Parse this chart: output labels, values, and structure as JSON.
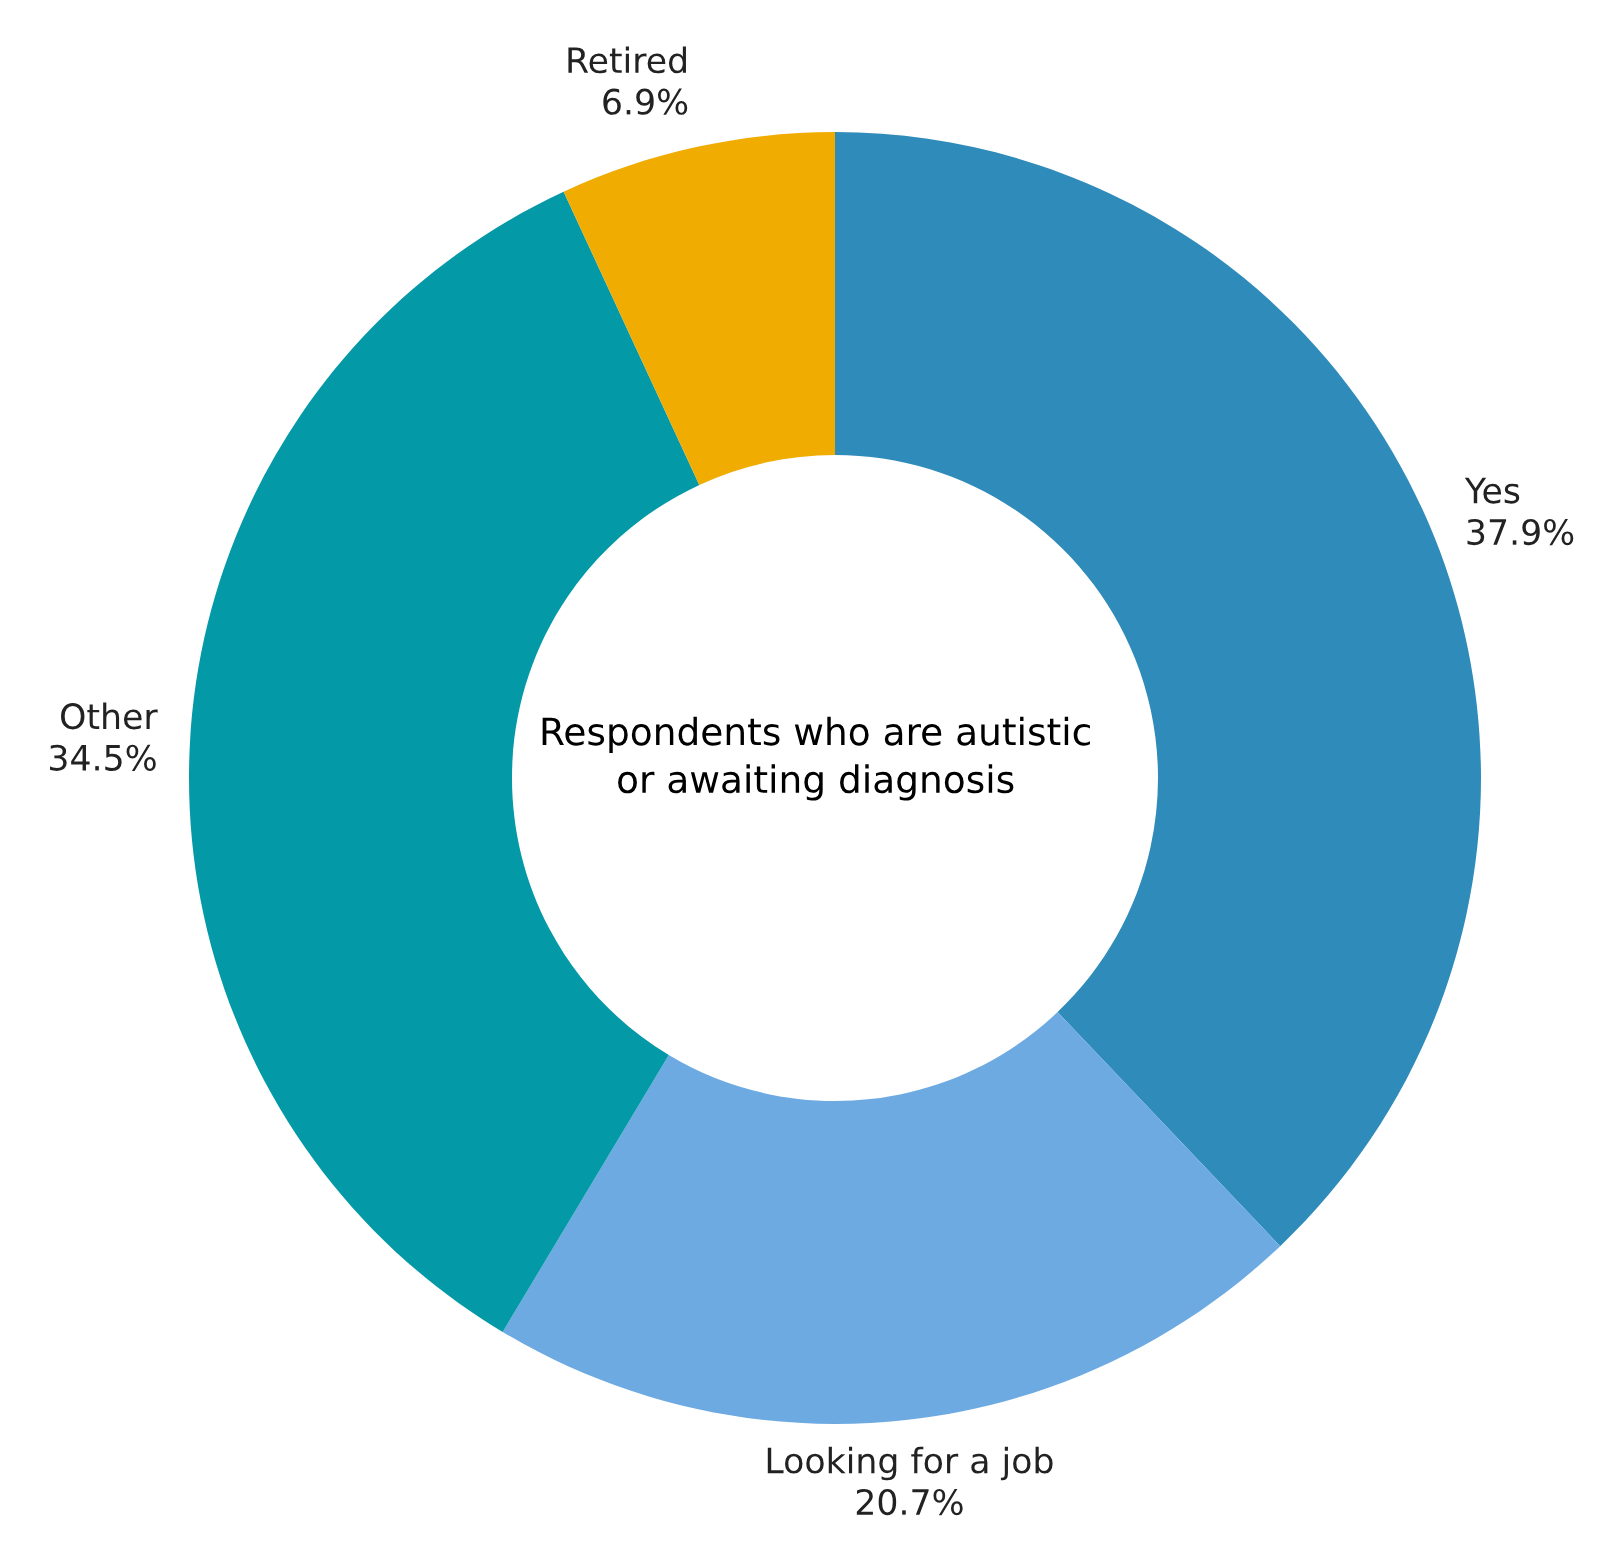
{
  "chart_data": {
    "type": "donut",
    "title": "Respondents who are autistic or awaiting diagnosis",
    "categories": [
      "Yes",
      "Looking for a job",
      "Other",
      "Retired"
    ],
    "values": [
      37.9,
      20.7,
      34.5,
      6.9
    ],
    "value_labels": [
      "37.9%",
      "20.7%",
      "34.5%",
      "6.9%"
    ],
    "colors": [
      "#2e8bba",
      "#6daae2",
      "#0399a6",
      "#f0ac00"
    ]
  }
}
